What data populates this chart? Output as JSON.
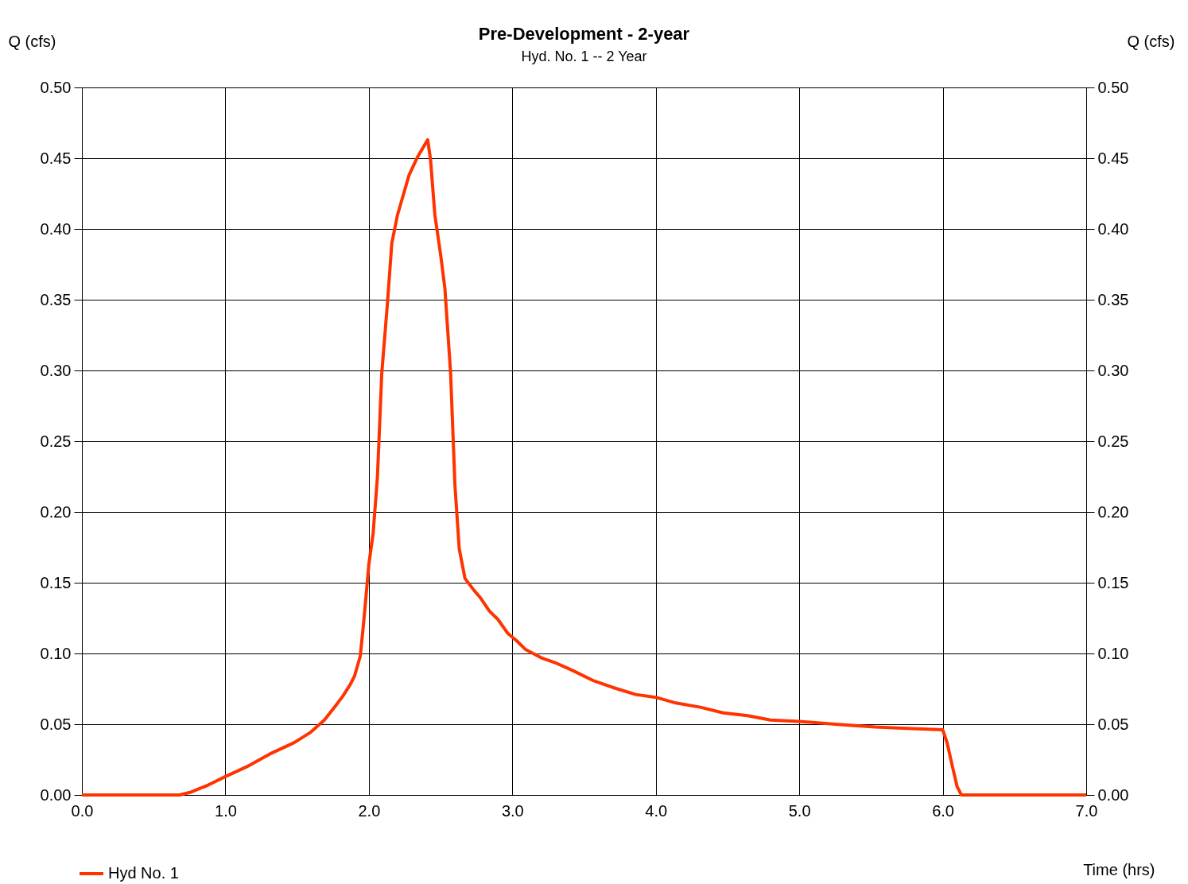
{
  "chart_data": {
    "type": "line",
    "title": "Pre-Development - 2-year",
    "subtitle": "Hyd. No. 1 -- 2 Year",
    "xlabel": "Time (hrs)",
    "ylabel": "Q (cfs)",
    "y2label": "Q (cfs)",
    "x": [
      0,
      0.68,
      0.76,
      0.88,
      1.0,
      1.15,
      1.31,
      1.48,
      1.59,
      1.69,
      1.76,
      1.82,
      1.87,
      1.9,
      1.94,
      1.96,
      1.98,
      2.0,
      2.03,
      2.06,
      2.09,
      2.13,
      2.16,
      2.2,
      2.24,
      2.28,
      2.34,
      2.41,
      2.43,
      2.46,
      2.5,
      2.53,
      2.57,
      2.6,
      2.63,
      2.67,
      2.73,
      2.78,
      2.84,
      2.9,
      2.97,
      3.03,
      3.09,
      3.2,
      3.31,
      3.42,
      3.56,
      3.7,
      3.86,
      4.0,
      4.14,
      4.31,
      4.47,
      4.64,
      4.8,
      5.0,
      5.25,
      5.53,
      5.75,
      6.0,
      6.03,
      6.07,
      6.1,
      6.13,
      7.0
    ],
    "series": [
      {
        "name": "Hyd No. 1",
        "color": "#ff3300",
        "values": [
          0,
          0,
          0.002,
          0.007,
          0.013,
          0.02,
          0.029,
          0.037,
          0.044,
          0.053,
          0.062,
          0.07,
          0.078,
          0.084,
          0.098,
          0.118,
          0.14,
          0.163,
          0.185,
          0.225,
          0.298,
          0.348,
          0.39,
          0.41,
          0.424,
          0.438,
          0.451,
          0.463,
          0.449,
          0.41,
          0.382,
          0.358,
          0.298,
          0.219,
          0.174,
          0.153,
          0.145,
          0.139,
          0.13,
          0.124,
          0.114,
          0.109,
          0.103,
          0.097,
          0.093,
          0.088,
          0.081,
          0.076,
          0.071,
          0.069,
          0.065,
          0.062,
          0.058,
          0.056,
          0.053,
          0.052,
          0.05,
          0.048,
          0.047,
          0.046,
          0.037,
          0.019,
          0.006,
          0,
          0
        ]
      }
    ],
    "xlim": [
      0,
      7
    ],
    "xticks": [
      {
        "value": 0,
        "label": "0.0"
      },
      {
        "value": 1,
        "label": "1.0"
      },
      {
        "value": 2,
        "label": "2.0"
      },
      {
        "value": 3,
        "label": "3.0"
      },
      {
        "value": 4,
        "label": "4.0"
      },
      {
        "value": 5,
        "label": "5.0"
      },
      {
        "value": 6,
        "label": "6.0"
      },
      {
        "value": 7,
        "label": "7.0"
      }
    ],
    "ylim": [
      0,
      0.5
    ],
    "yticks": [
      {
        "value": 0,
        "label": "0.00"
      },
      {
        "value": 0.05,
        "label": "0.05"
      },
      {
        "value": 0.1,
        "label": "0.10"
      },
      {
        "value": 0.15,
        "label": "0.15"
      },
      {
        "value": 0.2,
        "label": "0.20"
      },
      {
        "value": 0.25,
        "label": "0.25"
      },
      {
        "value": 0.3,
        "label": "0.30"
      },
      {
        "value": 0.35,
        "label": "0.35"
      },
      {
        "value": 0.4,
        "label": "0.40"
      },
      {
        "value": 0.45,
        "label": "0.45"
      },
      {
        "value": 0.5,
        "label": "0.50"
      }
    ],
    "y2lim": [
      0,
      0.5
    ],
    "y2ticks": [
      {
        "value": 0,
        "label": "0.00"
      },
      {
        "value": 0.05,
        "label": "0.05"
      },
      {
        "value": 0.1,
        "label": "0.10"
      },
      {
        "value": 0.15,
        "label": "0.15"
      },
      {
        "value": 0.2,
        "label": "0.20"
      },
      {
        "value": 0.25,
        "label": "0.25"
      },
      {
        "value": 0.3,
        "label": "0.30"
      },
      {
        "value": 0.35,
        "label": "0.35"
      },
      {
        "value": 0.4,
        "label": "0.40"
      },
      {
        "value": 0.45,
        "label": "0.45"
      },
      {
        "value": 0.5,
        "label": "0.50"
      }
    ],
    "grid": true,
    "legend": "bottom left",
    "marker": "none",
    "line_style": "solid"
  }
}
